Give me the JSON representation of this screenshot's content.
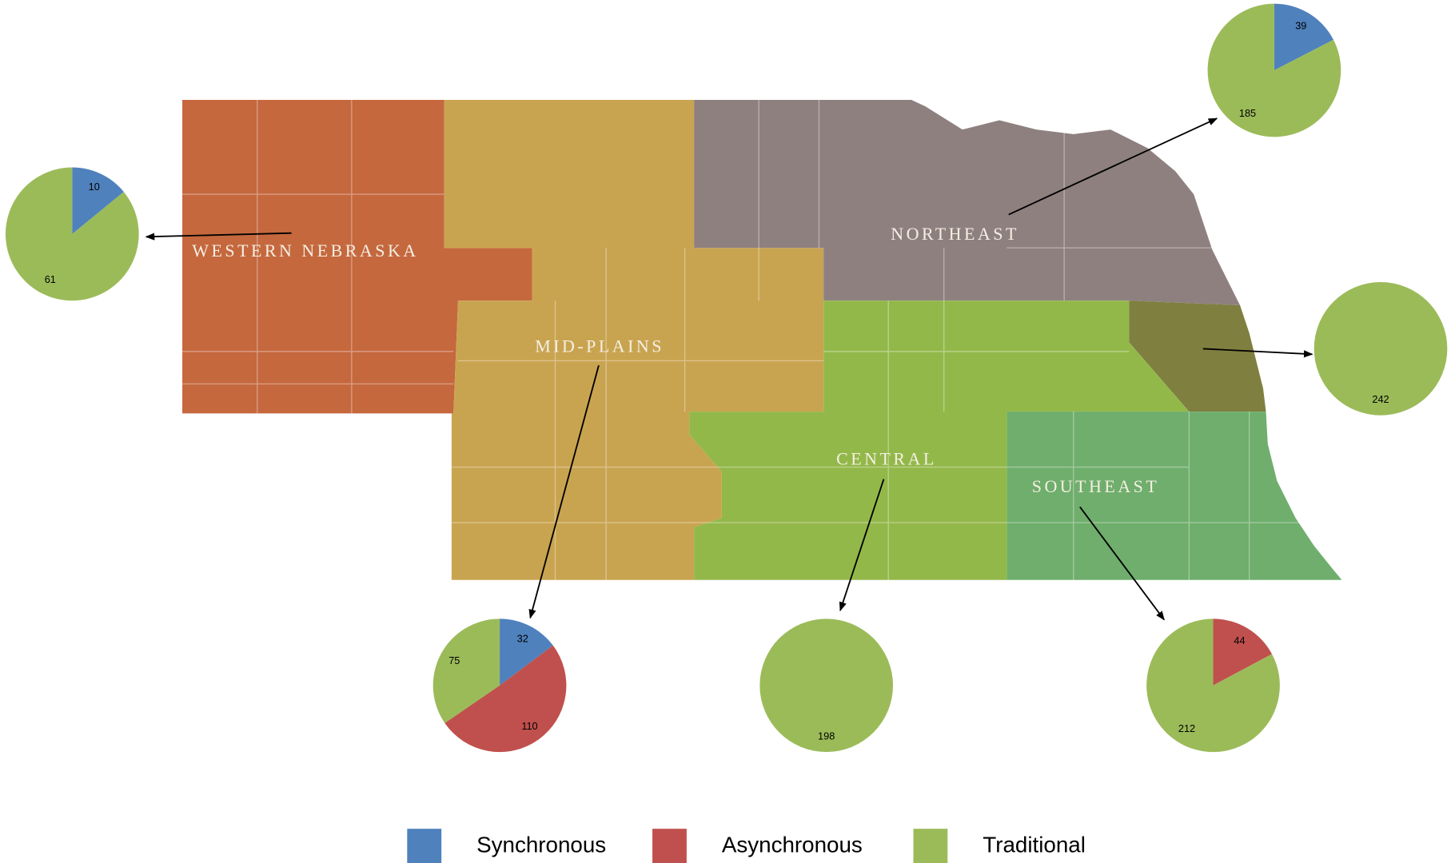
{
  "map": {
    "regions": [
      {
        "label": "WESTERN NEBRASKA"
      },
      {
        "label": "NORTHEAST"
      },
      {
        "label": "MID-PLAINS"
      },
      {
        "label": "CENTRAL"
      },
      {
        "label": "SOUTHEAST"
      }
    ]
  },
  "legend": [
    {
      "name": "Synchronous",
      "color": "#4f81bd"
    },
    {
      "name": "Asynchronous",
      "color": "#c0504d"
    },
    {
      "name": "Traditional",
      "color": "#9bbb59"
    }
  ],
  "chart_data": [
    {
      "type": "pie",
      "categories": [
        "Synchronous",
        "Traditional"
      ],
      "colors": [
        "#4f81bd",
        "#9bbb59"
      ],
      "values": [
        10,
        61
      ]
    },
    {
      "type": "pie",
      "categories": [
        "Synchronous",
        "Traditional"
      ],
      "colors": [
        "#4f81bd",
        "#9bbb59"
      ],
      "values": [
        39,
        185
      ]
    },
    {
      "type": "pie",
      "categories": [
        "Traditional"
      ],
      "colors": [
        "#9bbb59"
      ],
      "values": [
        242
      ]
    },
    {
      "type": "pie",
      "categories": [
        "Synchronous",
        "Asynchronous",
        "Traditional"
      ],
      "colors": [
        "#4f81bd",
        "#c0504d",
        "#9bbb59"
      ],
      "values": [
        32,
        110,
        75
      ]
    },
    {
      "type": "pie",
      "categories": [
        "Traditional"
      ],
      "colors": [
        "#9bbb59"
      ],
      "values": [
        198
      ]
    },
    {
      "type": "pie",
      "categories": [
        "Asynchronous",
        "Traditional"
      ],
      "colors": [
        "#c0504d",
        "#9bbb59"
      ],
      "values": [
        44,
        212
      ]
    }
  ]
}
